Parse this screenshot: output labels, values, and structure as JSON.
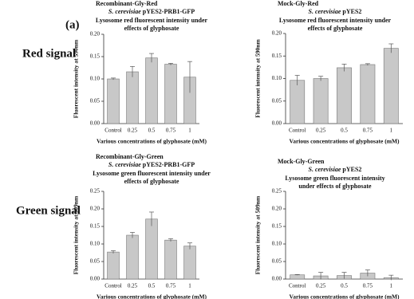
{
  "panel_label": "(a)",
  "row_labels": [
    "Red signal",
    "Green signal"
  ],
  "chart_data": [
    {
      "type": "bar",
      "label": "Recombinant-Gly-Red",
      "species": "S. cerevisiae",
      "strain": "pYES2-PRB1-GFP",
      "title_lines": [
        "Lysosome red fluorescent intensity under",
        "effects of glyphosate"
      ],
      "ylabel": "Fluorescent intensity at 590nm",
      "xlabel": "Various concentrations of glyphosate (mM)",
      "categories": [
        "Control",
        "0.25",
        "0.5",
        "0.75",
        "1"
      ],
      "values": [
        0.1,
        0.116,
        0.147,
        0.133,
        0.104
      ],
      "errors": [
        0.002,
        0.012,
        0.01,
        0.002,
        0.035
      ],
      "color": "#c8c8c8",
      "ylim": [
        0,
        0.2
      ],
      "yticks": [
        {
          "value": 0,
          "label": "0.00"
        },
        {
          "value": 0.05,
          "label": "0.05"
        },
        {
          "value": 0.1,
          "label": "0.10"
        },
        {
          "value": 0.15,
          "label": "0.15"
        },
        {
          "value": 0.2,
          "label": "0.20"
        }
      ]
    },
    {
      "type": "bar",
      "label": "Mock-Gly-Red",
      "species": "S. cerevisiae",
      "strain": "pYES2",
      "title_lines": [
        "Lysosome red fluorescent intensity under",
        "effects of glyphosate"
      ],
      "ylabel": "Fluorescent intensity at 590nm",
      "xlabel": "Various concentrations of glyphosate (mM)",
      "categories": [
        "Control",
        "0.25",
        "0.5",
        "0.75",
        "1"
      ],
      "values": [
        0.096,
        0.1,
        0.124,
        0.131,
        0.167
      ],
      "errors": [
        0.011,
        0.005,
        0.008,
        0.002,
        0.01
      ],
      "color": "#c8c8c8",
      "ylim": [
        0,
        0.2
      ],
      "yticks": [
        {
          "value": 0,
          "label": "0.00"
        },
        {
          "value": 0.05,
          "label": "0.05"
        },
        {
          "value": 0.1,
          "label": "0.10"
        },
        {
          "value": 0.15,
          "label": "0.15"
        },
        {
          "value": 0.2,
          "label": "0.20"
        }
      ]
    },
    {
      "type": "bar",
      "label": "Recombinant-Gly-Green",
      "species": "S. cerevisiae",
      "strain": "pYES2-PRB1-GFP",
      "title_lines": [
        "Lysosome green fluorescent intensity under",
        "effects of glyphosate"
      ],
      "ylabel": "Fluorescent intensity at 509nm",
      "xlabel": "Various concentrations of glyphosate (mM)",
      "categories": [
        "Control",
        "0.25",
        "0.5",
        "0.75",
        "1"
      ],
      "values": [
        0.077,
        0.125,
        0.171,
        0.111,
        0.094
      ],
      "errors": [
        0.004,
        0.008,
        0.02,
        0.004,
        0.009
      ],
      "color": "#c8c8c8",
      "ylim": [
        0,
        0.25
      ],
      "yticks": [
        {
          "value": 0,
          "label": "0.00"
        },
        {
          "value": 0.05,
          "label": "0.05"
        },
        {
          "value": 0.1,
          "label": "0.10"
        },
        {
          "value": 0.15,
          "label": "0.15"
        },
        {
          "value": 0.2,
          "label": "0.20"
        },
        {
          "value": 0.25,
          "label": "0.25"
        }
      ]
    },
    {
      "type": "bar",
      "label": "Mock-Gly-Green",
      "species": "S. cerevisiae",
      "strain": "pYES2",
      "title_lines": [
        "Lysosome green fluorescent intensity",
        "under effects of glyphosate"
      ],
      "ylabel": "Fluorescent intensity at 509nm",
      "xlabel": "Various concentrations of glyphosate (mM)",
      "categories": [
        "Control",
        "0.25",
        "0.5",
        "0.75",
        "1"
      ],
      "values": [
        0.012,
        0.009,
        0.01,
        0.017,
        0.004
      ],
      "errors": [
        0.001,
        0.01,
        0.009,
        0.009,
        0.007
      ],
      "color": "#c8c8c8",
      "ylim": [
        0,
        0.25
      ],
      "yticks": [
        {
          "value": 0,
          "label": "0.00"
        },
        {
          "value": 0.05,
          "label": "0.05"
        },
        {
          "value": 0.1,
          "label": "0.10"
        },
        {
          "value": 0.15,
          "label": "0.15"
        },
        {
          "value": 0.2,
          "label": "0.20"
        },
        {
          "value": 0.25,
          "label": "0.25"
        }
      ]
    }
  ]
}
